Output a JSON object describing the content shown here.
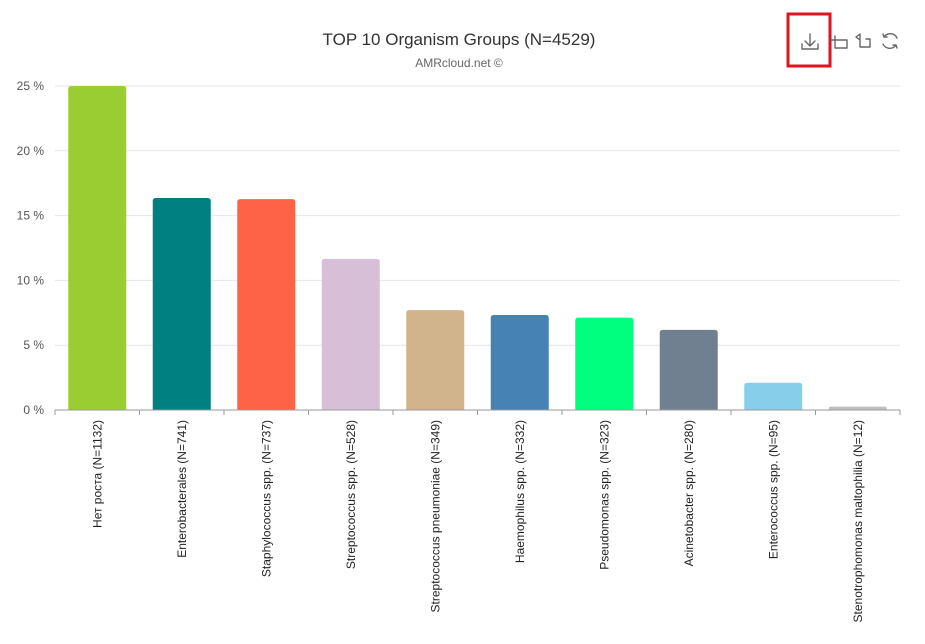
{
  "chart_data": {
    "type": "bar",
    "title": "TOP 10 Organism Groups (N=4529)",
    "subtitle": "AMRcloud.net ©",
    "categories": [
      "Нет роста (N=1132)",
      "Enterobacterales (N=741)",
      "Staphylococcus spp. (N=737)",
      "Streptococcus spp. (N=528)",
      "Streptococcus pneumoniae (N=349)",
      "Haemophilus spp. (N=332)",
      "Pseudomonas spp. (N=323)",
      "Acinetobacter spp. (N=280)",
      "Enterococcus spp. (N=95)",
      "Stenotrophomonas maltophilia (N=12)"
    ],
    "values": [
      25.0,
      16.36,
      16.27,
      11.66,
      7.71,
      7.33,
      7.13,
      6.18,
      2.1,
      0.26
    ],
    "colors": [
      "#9acd32",
      "#008080",
      "#ff6347",
      "#d8bfd8",
      "#d2b48c",
      "#4682b4",
      "#00ff7f",
      "#708090",
      "#87ceeb",
      "#c0c0c0"
    ],
    "ylim": [
      0,
      25
    ],
    "y_ticks": [
      "0 %",
      "5 %",
      "10 %",
      "15 %",
      "20 %",
      "25 %"
    ],
    "grid": true
  },
  "toolbox": {
    "icons": [
      "download-icon",
      "data-zoom-icon",
      "zoom-reset-icon",
      "restore-icon"
    ]
  }
}
